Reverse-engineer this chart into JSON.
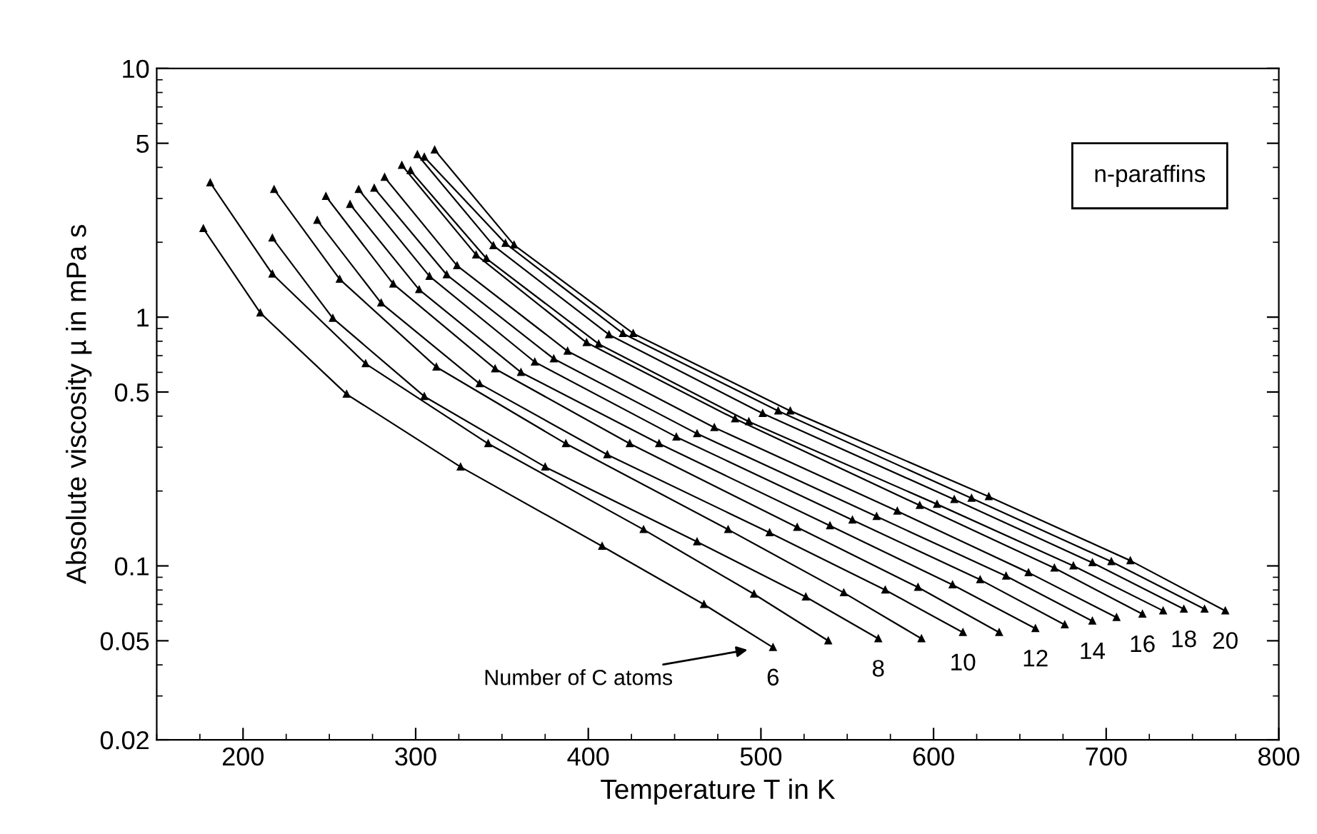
{
  "chart_data": {
    "type": "line",
    "xlabel": "Temperature T in K",
    "ylabel": "Absolute viscosity µ in mPa s",
    "xlim": [
      150,
      800
    ],
    "xticks": [
      200,
      300,
      400,
      500,
      600,
      700,
      800
    ],
    "ylim": [
      0.02,
      10
    ],
    "yticks": [
      0.02,
      0.05,
      0.1,
      0.5,
      1,
      5,
      10
    ],
    "log": "y",
    "grid": false,
    "legend": "bottom right",
    "marker": "triangle",
    "line_style": "solid",
    "annotations": [
      "n-paraffins",
      "Number of C atoms"
    ],
    "series": [
      {
        "name": "6",
        "color": "#000000",
        "x": [
          177,
          210,
          260,
          326,
          408,
          467,
          507
        ],
        "values": [
          2.27,
          1.04,
          0.49,
          0.25,
          0.12,
          0.07,
          0.047
        ]
      },
      {
        "color": "#000000",
        "x": [
          181,
          217,
          271,
          342,
          432,
          496,
          539
        ],
        "values": [
          3.47,
          1.49,
          0.65,
          0.31,
          0.14,
          0.077,
          0.05
        ]
      },
      {
        "name": "8",
        "color": "#000000",
        "x": [
          217,
          252,
          305,
          375,
          463,
          526,
          568
        ],
        "values": [
          2.08,
          0.99,
          0.48,
          0.25,
          0.125,
          0.075,
          0.051
        ]
      },
      {
        "color": "#000000",
        "x": [
          218,
          256,
          312,
          387,
          481,
          548,
          593
        ],
        "values": [
          3.26,
          1.42,
          0.63,
          0.31,
          0.14,
          0.078,
          0.051
        ]
      },
      {
        "name": "10",
        "color": "#000000",
        "x": [
          243,
          280,
          337,
          411,
          505,
          572,
          617
        ],
        "values": [
          2.45,
          1.14,
          0.54,
          0.28,
          0.136,
          0.08,
          0.054
        ]
      },
      {
        "color": "#000000",
        "x": [
          248,
          287,
          346,
          424,
          521,
          591,
          638
        ],
        "values": [
          3.06,
          1.36,
          0.62,
          0.31,
          0.143,
          0.082,
          0.054
        ]
      },
      {
        "name": "12",
        "color": "#000000",
        "x": [
          262,
          302,
          361,
          441,
          540,
          611,
          659
        ],
        "values": [
          2.84,
          1.29,
          0.6,
          0.31,
          0.145,
          0.084,
          0.056
        ]
      },
      {
        "color": "#000000",
        "x": [
          267,
          308,
          369,
          451,
          553,
          627,
          676
        ],
        "values": [
          3.26,
          1.46,
          0.66,
          0.33,
          0.153,
          0.088,
          0.058
        ]
      },
      {
        "name": "14",
        "color": "#000000",
        "x": [
          276,
          318,
          380,
          463,
          567,
          642,
          692
        ],
        "values": [
          3.3,
          1.48,
          0.68,
          0.34,
          0.158,
          0.091,
          0.06
        ]
      },
      {
        "color": "#000000",
        "x": [
          282,
          324,
          388,
          473,
          579,
          655,
          706
        ],
        "values": [
          3.65,
          1.61,
          0.73,
          0.36,
          0.166,
          0.094,
          0.062
        ]
      },
      {
        "name": "16",
        "color": "#000000",
        "x": [
          292,
          335,
          399,
          485,
          592,
          670,
          721
        ],
        "values": [
          4.08,
          1.78,
          0.79,
          0.39,
          0.175,
          0.098,
          0.064
        ]
      },
      {
        "color": "#000000",
        "x": [
          297,
          341,
          406,
          493,
          602,
          681,
          733
        ],
        "values": [
          3.88,
          1.72,
          0.78,
          0.38,
          0.177,
          0.1,
          0.066
        ]
      },
      {
        "name": "18",
        "color": "#000000",
        "x": [
          301,
          345,
          412,
          501,
          612,
          692,
          745
        ],
        "values": [
          4.5,
          1.94,
          0.85,
          0.41,
          0.185,
          0.103,
          0.067
        ]
      },
      {
        "color": "#000000",
        "x": [
          305,
          352,
          420,
          510,
          622,
          703,
          757
        ],
        "values": [
          4.4,
          1.98,
          0.86,
          0.42,
          0.187,
          0.104,
          0.067
        ]
      },
      {
        "name": "20",
        "color": "#000000",
        "x": [
          311,
          357,
          426,
          517,
          632,
          714,
          769
        ],
        "values": [
          4.7,
          1.95,
          0.86,
          0.42,
          0.19,
          0.105,
          0.066
        ]
      }
    ]
  }
}
